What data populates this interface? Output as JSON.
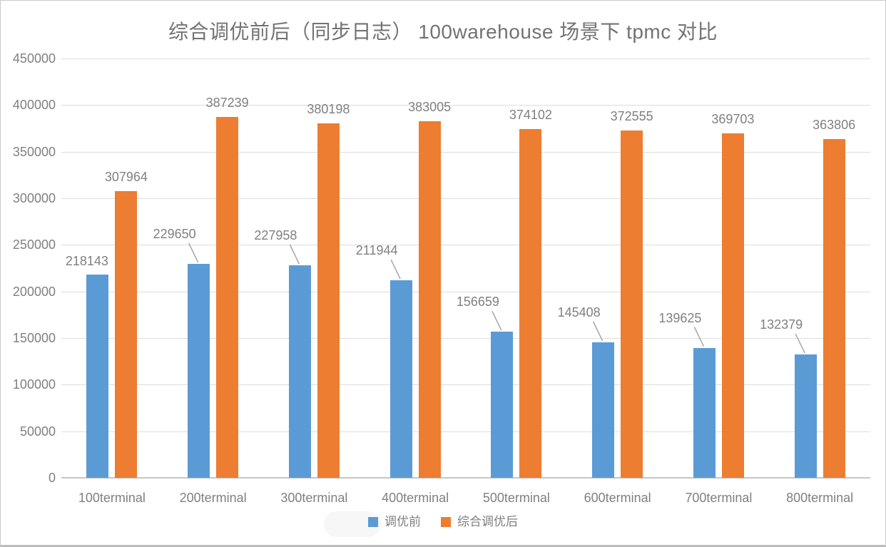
{
  "chart_data": {
    "type": "bar",
    "title": "综合调优前后（同步日志） 100warehouse 场景下 tpmc 对比",
    "categories": [
      "100terminal",
      "200terminal",
      "300terminal",
      "400terminal",
      "500terminal",
      "600terminal",
      "700terminal",
      "800terminal"
    ],
    "series": [
      {
        "name": "调优前",
        "color": "#5B9BD5",
        "values": [
          218143,
          229650,
          227958,
          211944,
          156659,
          145408,
          139625,
          132379
        ]
      },
      {
        "name": "综合调优后",
        "color": "#ED7D31",
        "values": [
          307964,
          387239,
          380198,
          383005,
          374102,
          372555,
          369703,
          363806
        ]
      }
    ],
    "xlabel": "",
    "ylabel": "",
    "ylim": [
      0,
      450000
    ],
    "ytick_step": 50000,
    "ytick_labels": [
      "0",
      "50000",
      "100000",
      "150000",
      "200000",
      "250000",
      "300000",
      "350000",
      "400000",
      "450000"
    ],
    "grid": true,
    "data_labels": true,
    "legend_position": "bottom"
  },
  "style": {
    "gridline_color": "#dddddd",
    "axisline_color": "#c6c6c6",
    "leaderline_color": "#a6a6a6",
    "label_color": "#808080",
    "title_color": "#737373"
  }
}
